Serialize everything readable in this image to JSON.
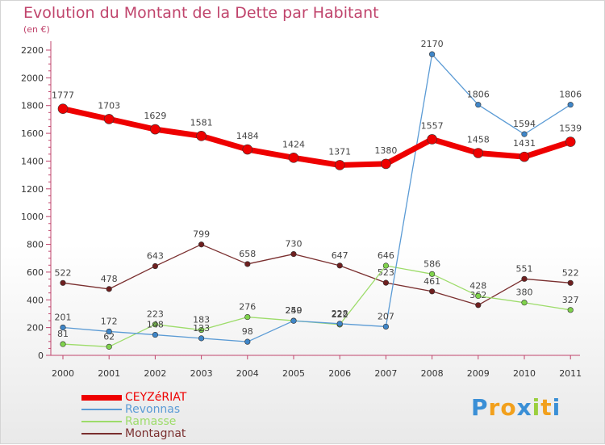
{
  "chart_data": {
    "type": "line",
    "title": "Evolution du Montant de la Dette par Habitant",
    "unit_label": "(en €)",
    "x": [
      "2000",
      "2001",
      "2002",
      "2003",
      "2004",
      "2005",
      "2006",
      "2007",
      "2008",
      "2009",
      "2010",
      "2011"
    ],
    "ylim": [
      0,
      2200
    ],
    "yticks": [
      0,
      200,
      400,
      600,
      800,
      1000,
      1200,
      1400,
      1600,
      1800,
      2000,
      2200
    ],
    "grid": false,
    "legend_position": "bottom-left",
    "series": [
      {
        "name": "CEYZéRIAT",
        "color": "#ee0000",
        "marker": "#ee0000",
        "width": 7,
        "dot": 6,
        "values": [
          1777,
          1703,
          1629,
          1581,
          1484,
          1424,
          1371,
          1380,
          1557,
          1458,
          1431,
          1539
        ]
      },
      {
        "name": "Revonnas",
        "color": "#5b9bd5",
        "marker": "#3f86c8",
        "width": 1.3,
        "dot": 3.3,
        "values": [
          201,
          172,
          148,
          123,
          98,
          249,
          228,
          207,
          2170,
          1806,
          1594,
          1806
        ]
      },
      {
        "name": "Ramasse",
        "color": "#9ddc6a",
        "marker": "#7fd24c",
        "width": 1.3,
        "dot": 3.3,
        "values": [
          81,
          62,
          223,
          183,
          276,
          250,
          222,
          646,
          586,
          428,
          380,
          327
        ]
      },
      {
        "name": "Montagnat",
        "color": "#7a2f2f",
        "marker": "#6e1f1f",
        "width": 1.3,
        "dot": 3.3,
        "values": [
          522,
          478,
          643,
          799,
          658,
          730,
          647,
          523,
          461,
          362,
          551,
          522
        ]
      }
    ]
  },
  "legend_colors": [
    "#ee0000",
    "#5b9bd5",
    "#9ddc6a",
    "#7a2f2f"
  ],
  "brand": {
    "name": "Proxiti",
    "letters": [
      "P",
      "r",
      "o",
      "x",
      "i",
      "t",
      "i"
    ],
    "letter_colors": [
      "#3a8fd6",
      "#f2a01c",
      "#f2a01c",
      "#3a8fd6",
      "#9bcf3e",
      "#f2a01c",
      "#3a8fd6"
    ]
  }
}
